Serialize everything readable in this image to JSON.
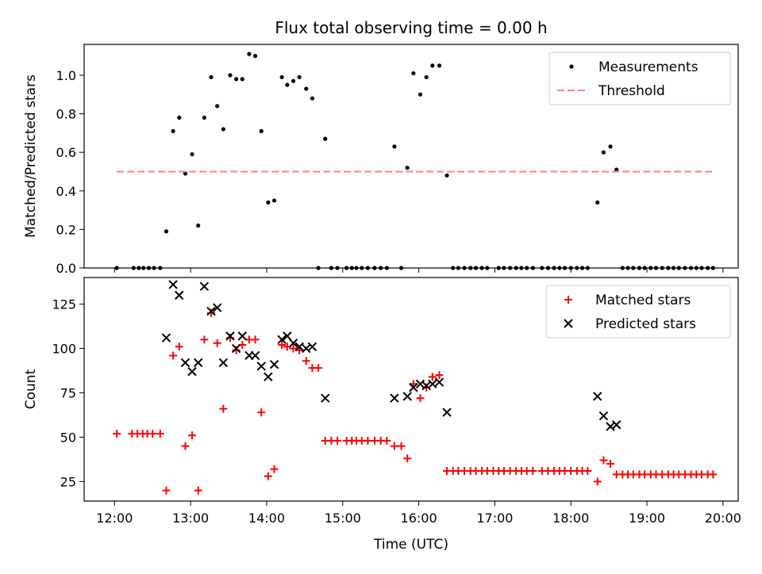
{
  "figure_title": "Flux total observing time = 0.00 h",
  "chart_data": [
    {
      "type": "scatter",
      "title": "Flux total observing time = 0.00 h",
      "xlabel": "",
      "ylabel": "Matched/Predicted stars",
      "xlim": [
        11.6,
        20.2
      ],
      "ylim": [
        0,
        1.16
      ],
      "yticks": [
        0.0,
        0.2,
        0.4,
        0.6,
        0.8,
        1.0
      ],
      "ytick_labels": [
        "0.0",
        "0.2",
        "0.4",
        "0.6",
        "0.8",
        "1.0"
      ],
      "xticks": [
        12,
        13,
        14,
        15,
        16,
        17,
        18,
        19,
        20
      ],
      "legend_position": "top-right",
      "grid": false,
      "series": [
        {
          "name": "Measurements",
          "marker": "dot",
          "color": "#000000",
          "points": [
            [
              12.03,
              0.0
            ],
            [
              12.25,
              0.0
            ],
            [
              12.32,
              0.0
            ],
            [
              12.38,
              0.0
            ],
            [
              12.45,
              0.0
            ],
            [
              12.52,
              0.0
            ],
            [
              12.6,
              0.0
            ],
            [
              12.68,
              0.19
            ],
            [
              12.77,
              0.71
            ],
            [
              12.85,
              0.78
            ],
            [
              12.93,
              0.49
            ],
            [
              13.02,
              0.59
            ],
            [
              13.1,
              0.22
            ],
            [
              13.18,
              0.78
            ],
            [
              13.27,
              0.99
            ],
            [
              13.35,
              0.84
            ],
            [
              13.43,
              0.72
            ],
            [
              13.52,
              1.0
            ],
            [
              13.6,
              0.98
            ],
            [
              13.68,
              0.98
            ],
            [
              13.77,
              1.11
            ],
            [
              13.85,
              1.1
            ],
            [
              13.93,
              0.71
            ],
            [
              14.02,
              0.34
            ],
            [
              14.1,
              0.35
            ],
            [
              14.2,
              0.99
            ],
            [
              14.27,
              0.95
            ],
            [
              14.35,
              0.97
            ],
            [
              14.43,
              0.99
            ],
            [
              14.52,
              0.93
            ],
            [
              14.6,
              0.88
            ],
            [
              14.68,
              0.0
            ],
            [
              14.77,
              0.67
            ],
            [
              14.85,
              0.0
            ],
            [
              14.93,
              0.0
            ],
            [
              15.05,
              0.0
            ],
            [
              15.12,
              0.0
            ],
            [
              15.18,
              0.0
            ],
            [
              15.25,
              0.0
            ],
            [
              15.33,
              0.0
            ],
            [
              15.42,
              0.0
            ],
            [
              15.5,
              0.0
            ],
            [
              15.58,
              0.0
            ],
            [
              15.68,
              0.63
            ],
            [
              15.77,
              0.0
            ],
            [
              15.85,
              0.52
            ],
            [
              15.93,
              1.01
            ],
            [
              16.02,
              0.9
            ],
            [
              16.1,
              0.99
            ],
            [
              16.18,
              1.05
            ],
            [
              16.27,
              1.05
            ],
            [
              16.37,
              0.48
            ],
            [
              16.45,
              0.0
            ],
            [
              16.52,
              0.0
            ],
            [
              16.6,
              0.0
            ],
            [
              16.68,
              0.0
            ],
            [
              16.75,
              0.0
            ],
            [
              16.83,
              0.0
            ],
            [
              16.9,
              0.0
            ],
            [
              17.05,
              0.0
            ],
            [
              17.12,
              0.0
            ],
            [
              17.2,
              0.0
            ],
            [
              17.28,
              0.0
            ],
            [
              17.35,
              0.0
            ],
            [
              17.42,
              0.0
            ],
            [
              17.5,
              0.0
            ],
            [
              17.62,
              0.0
            ],
            [
              17.7,
              0.0
            ],
            [
              17.78,
              0.0
            ],
            [
              17.85,
              0.0
            ],
            [
              17.92,
              0.0
            ],
            [
              18.0,
              0.0
            ],
            [
              18.08,
              0.0
            ],
            [
              18.15,
              0.0
            ],
            [
              18.22,
              0.0
            ],
            [
              18.35,
              0.34
            ],
            [
              18.43,
              0.6
            ],
            [
              18.52,
              0.63
            ],
            [
              18.6,
              0.51
            ],
            [
              18.68,
              0.0
            ],
            [
              18.75,
              0.0
            ],
            [
              18.82,
              0.0
            ],
            [
              18.9,
              0.0
            ],
            [
              18.97,
              0.0
            ],
            [
              19.05,
              0.0
            ],
            [
              19.12,
              0.0
            ],
            [
              19.2,
              0.0
            ],
            [
              19.28,
              0.0
            ],
            [
              19.35,
              0.0
            ],
            [
              19.42,
              0.0
            ],
            [
              19.5,
              0.0
            ],
            [
              19.58,
              0.0
            ],
            [
              19.65,
              0.0
            ],
            [
              19.72,
              0.0
            ],
            [
              19.8,
              0.0
            ],
            [
              19.87,
              0.0
            ]
          ]
        },
        {
          "name": "Threshold",
          "type": "line",
          "style": "dashed",
          "color": "#ff7f7f",
          "points": [
            [
              12.03,
              0.5
            ],
            [
              19.87,
              0.5
            ]
          ]
        }
      ]
    },
    {
      "type": "scatter",
      "title": "",
      "xlabel": "Time (UTC)",
      "ylabel": "Count",
      "xlim": [
        11.6,
        20.2
      ],
      "ylim": [
        14,
        140
      ],
      "yticks": [
        25,
        50,
        75,
        100,
        125
      ],
      "ytick_labels": [
        "25",
        "50",
        "75",
        "100",
        "125"
      ],
      "xticks": [
        12,
        13,
        14,
        15,
        16,
        17,
        18,
        19,
        20
      ],
      "xtick_labels": [
        "12:00",
        "13:00",
        "14:00",
        "15:00",
        "16:00",
        "17:00",
        "18:00",
        "19:00",
        "20:00"
      ],
      "legend_position": "top-right",
      "grid": false,
      "series": [
        {
          "name": "Matched stars",
          "marker": "plus",
          "color": "#ff0000",
          "points": [
            [
              12.03,
              52
            ],
            [
              12.23,
              52
            ],
            [
              12.3,
              52
            ],
            [
              12.37,
              52
            ],
            [
              12.43,
              52
            ],
            [
              12.5,
              52
            ],
            [
              12.6,
              52
            ],
            [
              12.68,
              20
            ],
            [
              12.77,
              96
            ],
            [
              12.85,
              101
            ],
            [
              12.93,
              45
            ],
            [
              13.02,
              51
            ],
            [
              13.1,
              20
            ],
            [
              13.18,
              105
            ],
            [
              13.27,
              120
            ],
            [
              13.35,
              103
            ],
            [
              13.43,
              66
            ],
            [
              13.52,
              106
            ],
            [
              13.6,
              99
            ],
            [
              13.68,
              102
            ],
            [
              13.77,
              105
            ],
            [
              13.85,
              105
            ],
            [
              13.93,
              64
            ],
            [
              14.02,
              28
            ],
            [
              14.1,
              32
            ],
            [
              14.2,
              102
            ],
            [
              14.27,
              101
            ],
            [
              14.35,
              100
            ],
            [
              14.43,
              99
            ],
            [
              14.52,
              93
            ],
            [
              14.6,
              89
            ],
            [
              14.68,
              89
            ],
            [
              14.77,
              48
            ],
            [
              14.85,
              48
            ],
            [
              14.93,
              48
            ],
            [
              15.05,
              48
            ],
            [
              15.12,
              48
            ],
            [
              15.18,
              48
            ],
            [
              15.25,
              48
            ],
            [
              15.33,
              48
            ],
            [
              15.42,
              48
            ],
            [
              15.5,
              48
            ],
            [
              15.58,
              48
            ],
            [
              15.68,
              45
            ],
            [
              15.77,
              45
            ],
            [
              15.85,
              38
            ],
            [
              15.93,
              80
            ],
            [
              16.02,
              72
            ],
            [
              16.1,
              78
            ],
            [
              16.18,
              84
            ],
            [
              16.27,
              85
            ],
            [
              16.37,
              31
            ],
            [
              16.45,
              31
            ],
            [
              16.52,
              31
            ],
            [
              16.6,
              31
            ],
            [
              16.68,
              31
            ],
            [
              16.75,
              31
            ],
            [
              16.83,
              31
            ],
            [
              16.9,
              31
            ],
            [
              16.98,
              31
            ],
            [
              17.05,
              31
            ],
            [
              17.12,
              31
            ],
            [
              17.2,
              31
            ],
            [
              17.28,
              31
            ],
            [
              17.35,
              31
            ],
            [
              17.42,
              31
            ],
            [
              17.5,
              31
            ],
            [
              17.62,
              31
            ],
            [
              17.7,
              31
            ],
            [
              17.78,
              31
            ],
            [
              17.85,
              31
            ],
            [
              17.92,
              31
            ],
            [
              18.0,
              31
            ],
            [
              18.08,
              31
            ],
            [
              18.15,
              31
            ],
            [
              18.22,
              31
            ],
            [
              18.35,
              25
            ],
            [
              18.43,
              37
            ],
            [
              18.52,
              35
            ],
            [
              18.6,
              29
            ],
            [
              18.68,
              29
            ],
            [
              18.75,
              29
            ],
            [
              18.82,
              29
            ],
            [
              18.9,
              29
            ],
            [
              18.97,
              29
            ],
            [
              19.05,
              29
            ],
            [
              19.12,
              29
            ],
            [
              19.2,
              29
            ],
            [
              19.28,
              29
            ],
            [
              19.35,
              29
            ],
            [
              19.42,
              29
            ],
            [
              19.5,
              29
            ],
            [
              19.58,
              29
            ],
            [
              19.65,
              29
            ],
            [
              19.72,
              29
            ],
            [
              19.8,
              29
            ],
            [
              19.87,
              29
            ]
          ]
        },
        {
          "name": "Predicted stars",
          "marker": "x",
          "color": "#000000",
          "points": [
            [
              12.68,
              106
            ],
            [
              12.77,
              136
            ],
            [
              12.85,
              130
            ],
            [
              12.93,
              92
            ],
            [
              13.02,
              87
            ],
            [
              13.1,
              92
            ],
            [
              13.18,
              135
            ],
            [
              13.27,
              121
            ],
            [
              13.35,
              123
            ],
            [
              13.43,
              92
            ],
            [
              13.52,
              107
            ],
            [
              13.6,
              100
            ],
            [
              13.68,
              107
            ],
            [
              13.77,
              96
            ],
            [
              13.85,
              96
            ],
            [
              13.93,
              90
            ],
            [
              14.02,
              84
            ],
            [
              14.1,
              91
            ],
            [
              14.2,
              105
            ],
            [
              14.27,
              107
            ],
            [
              14.35,
              103
            ],
            [
              14.43,
              101
            ],
            [
              14.52,
              100
            ],
            [
              14.6,
              101
            ],
            [
              14.77,
              72
            ],
            [
              15.68,
              72
            ],
            [
              15.85,
              73
            ],
            [
              15.93,
              78
            ],
            [
              16.02,
              80
            ],
            [
              16.1,
              79
            ],
            [
              16.18,
              80
            ],
            [
              16.27,
              81
            ],
            [
              16.37,
              64
            ],
            [
              18.35,
              73
            ],
            [
              18.43,
              62
            ],
            [
              18.52,
              56
            ],
            [
              18.6,
              57
            ]
          ]
        }
      ]
    }
  ]
}
